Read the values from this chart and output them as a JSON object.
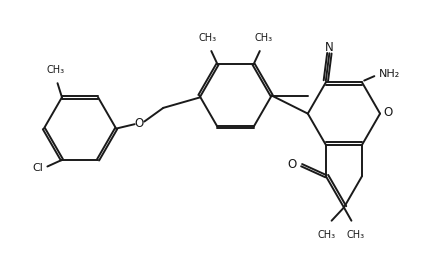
{
  "bg_color": "#ffffff",
  "line_color": "#1a1a1a",
  "line_width": 1.4,
  "figsize": [
    4.42,
    2.66
  ],
  "dpi": 100,
  "xlim": [
    0,
    10
  ],
  "ylim": [
    0,
    6
  ]
}
